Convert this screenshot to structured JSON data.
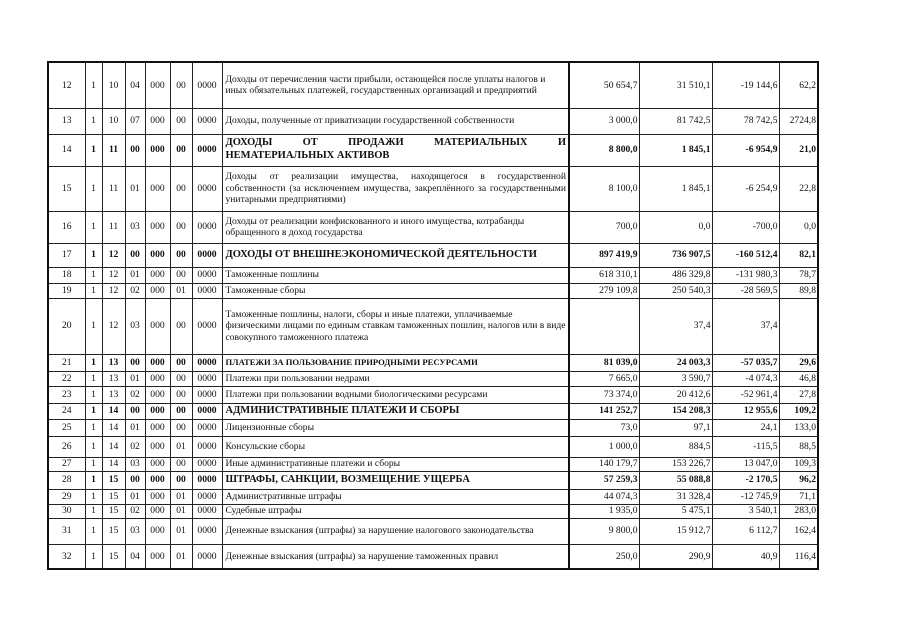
{
  "table": {
    "rows": [
      {
        "n": "12",
        "codes": [
          "1",
          "10",
          "04",
          "000",
          "00",
          "0000"
        ],
        "desc": "Доходы от перечисления части прибыли, остающейся после уплаты налогов и иных обязательных платежей, государственных организаций и предприятий",
        "values": [
          "50 654,7",
          "31 510,1",
          "-19 144,6",
          "62,2"
        ],
        "bold": false
      },
      {
        "n": "13",
        "codes": [
          "1",
          "10",
          "07",
          "000",
          "00",
          "0000"
        ],
        "desc": "Доходы, полученные от приватизации государственной  собственности",
        "values": [
          "3 000,0",
          "81 742,5",
          "78 742,5",
          "2724,8"
        ],
        "bold": false
      },
      {
        "n": "14",
        "codes": [
          "1",
          "11",
          "00",
          "000",
          "00",
          "0000"
        ],
        "desc": "ДОХОДЫ ОТ ПРОДАЖИ МАТЕРИАЛЬНЫХ И НЕМАТЕРИАЛЬНЫХ АКТИВОВ",
        "values": [
          "8 800,0",
          "1 845,1",
          "-6 954,9",
          "21,0"
        ],
        "bold": true
      },
      {
        "n": "15",
        "codes": [
          "1",
          "11",
          "01",
          "000",
          "00",
          "0000"
        ],
        "desc": "Доходы от реализации имущества, находящегося в государственной собственности (за исключением имущества, закреплённого за государственными унитарными предприятиями)",
        "values": [
          "8 100,0",
          "1 845,1",
          "-6 254,9",
          "22,8"
        ],
        "bold": false
      },
      {
        "n": "16",
        "codes": [
          "1",
          "11",
          "03",
          "000",
          "00",
          "0000"
        ],
        "desc": "Доходы от реализации конфискованного и иного имущества, котрабанды обращенного в доход государства",
        "values": [
          "700,0",
          "0,0",
          "-700,0",
          "0,0"
        ],
        "bold": false
      },
      {
        "n": "17",
        "codes": [
          "1",
          "12",
          "00",
          "000",
          "00",
          "0000"
        ],
        "desc": "ДОХОДЫ ОТ ВНЕШНЕЭКОНОМИЧЕСКОЙ ДЕЯТЕЛЬНОСТИ",
        "values": [
          "897 419,9",
          "736 907,5",
          "-160 512,4",
          "82,1"
        ],
        "bold": true
      },
      {
        "n": "18",
        "codes": [
          "1",
          "12",
          "01",
          "000",
          "00",
          "0000"
        ],
        "desc": "Таможенные пошлины",
        "values": [
          "618 310,1",
          "486 329,8",
          "-131 980,3",
          "78,7"
        ],
        "bold": false
      },
      {
        "n": "19",
        "codes": [
          "1",
          "12",
          "02",
          "000",
          "01",
          "0000"
        ],
        "desc": "Таможенные сборы",
        "values": [
          "279 109,8",
          "250 540,3",
          "-28 569,5",
          "89,8"
        ],
        "bold": false
      },
      {
        "n": "20",
        "codes": [
          "1",
          "12",
          "03",
          "000",
          "00",
          "0000"
        ],
        "desc": "Таможенные пошлины, налоги, сборы и иные платежи, уплачиваемые физическими лицами по единым ставкам таможенных пошлин, налогов или в виде совокупного таможенного платежа",
        "values": [
          "",
          "37,4",
          "37,4",
          ""
        ],
        "bold": false
      },
      {
        "n": "21",
        "codes": [
          "1",
          "13",
          "00",
          "000",
          "00",
          "0000"
        ],
        "desc": "ПЛАТЕЖИ ЗА ПОЛЬЗОВАНИЕ ПРИРОДНЫМИ РЕСУРСАМИ",
        "values": [
          "81 039,0",
          "24 003,3",
          "-57 035,7",
          "29,6"
        ],
        "bold": true,
        "small": true
      },
      {
        "n": "22",
        "codes": [
          "1",
          "13",
          "01",
          "000",
          "00",
          "0000"
        ],
        "desc": "Платежи при пользовании недрами",
        "values": [
          "7 665,0",
          "3 590,7",
          "-4 074,3",
          "46,8"
        ],
        "bold": false
      },
      {
        "n": "23",
        "codes": [
          "1",
          "13",
          "02",
          "000",
          "00",
          "0000"
        ],
        "desc": "Платежи при пользовании водными биологическими ресурсами",
        "values": [
          "73 374,0",
          "20 412,6",
          "-52 961,4",
          "27,8"
        ],
        "bold": false
      },
      {
        "n": "24",
        "codes": [
          "1",
          "14",
          "00",
          "000",
          "00",
          "0000"
        ],
        "desc": "АДМИНИСТРАТИВНЫЕ ПЛАТЕЖИ И СБОРЫ",
        "values": [
          "141 252,7",
          "154 208,3",
          "12 955,6",
          "109,2"
        ],
        "bold": true
      },
      {
        "n": "25",
        "codes": [
          "1",
          "14",
          "01",
          "000",
          "00",
          "0000"
        ],
        "desc": "Лицензионные сборы",
        "values": [
          "73,0",
          "97,1",
          "24,1",
          "133,0"
        ],
        "bold": false
      },
      {
        "n": "26",
        "codes": [
          "1",
          "14",
          "02",
          "000",
          "01",
          "0000"
        ],
        "desc": "Консульские сборы",
        "values": [
          "1 000,0",
          "884,5",
          "-115,5",
          "88,5"
        ],
        "bold": false
      },
      {
        "n": "27",
        "codes": [
          "1",
          "14",
          "03",
          "000",
          "00",
          "0000"
        ],
        "desc": "Иные административные платежи и сборы",
        "values": [
          "140 179,7",
          "153 226,7",
          "13 047,0",
          "109,3"
        ],
        "bold": false
      },
      {
        "n": "28",
        "codes": [
          "1",
          "15",
          "00",
          "000",
          "00",
          "0000"
        ],
        "desc": "ШТРАФЫ, САНКЦИИ, ВОЗМЕЩЕНИЕ УЩЕРБА",
        "values": [
          "57 259,3",
          "55 088,8",
          "-2 170,5",
          "96,2"
        ],
        "bold": true
      },
      {
        "n": "29",
        "codes": [
          "1",
          "15",
          "01",
          "000",
          "01",
          "0000"
        ],
        "desc": "Административные штрафы",
        "values": [
          "44 074,3",
          "31 328,4",
          "-12 745,9",
          "71,1"
        ],
        "bold": false
      },
      {
        "n": "30",
        "codes": [
          "1",
          "15",
          "02",
          "000",
          "01",
          "0000"
        ],
        "desc": "Судебные штрафы",
        "values": [
          "1 935,0",
          "5 475,1",
          "3 540,1",
          "283,0"
        ],
        "bold": false
      },
      {
        "n": "31",
        "codes": [
          "1",
          "15",
          "03",
          "000",
          "01",
          "0000"
        ],
        "desc": "Денежные взыскания (штрафы) за нарушение налогового законодательства",
        "values": [
          "9 800,0",
          "15 912,7",
          "6 112,7",
          "162,4"
        ],
        "bold": false
      },
      {
        "n": "32",
        "codes": [
          "1",
          "15",
          "04",
          "000",
          "01",
          "0000"
        ],
        "desc": "Денежные взыскания (штрафы) за нарушение таможенных правил",
        "values": [
          "250,0",
          "290,9",
          "40,9",
          "116,4"
        ],
        "bold": false
      }
    ]
  }
}
